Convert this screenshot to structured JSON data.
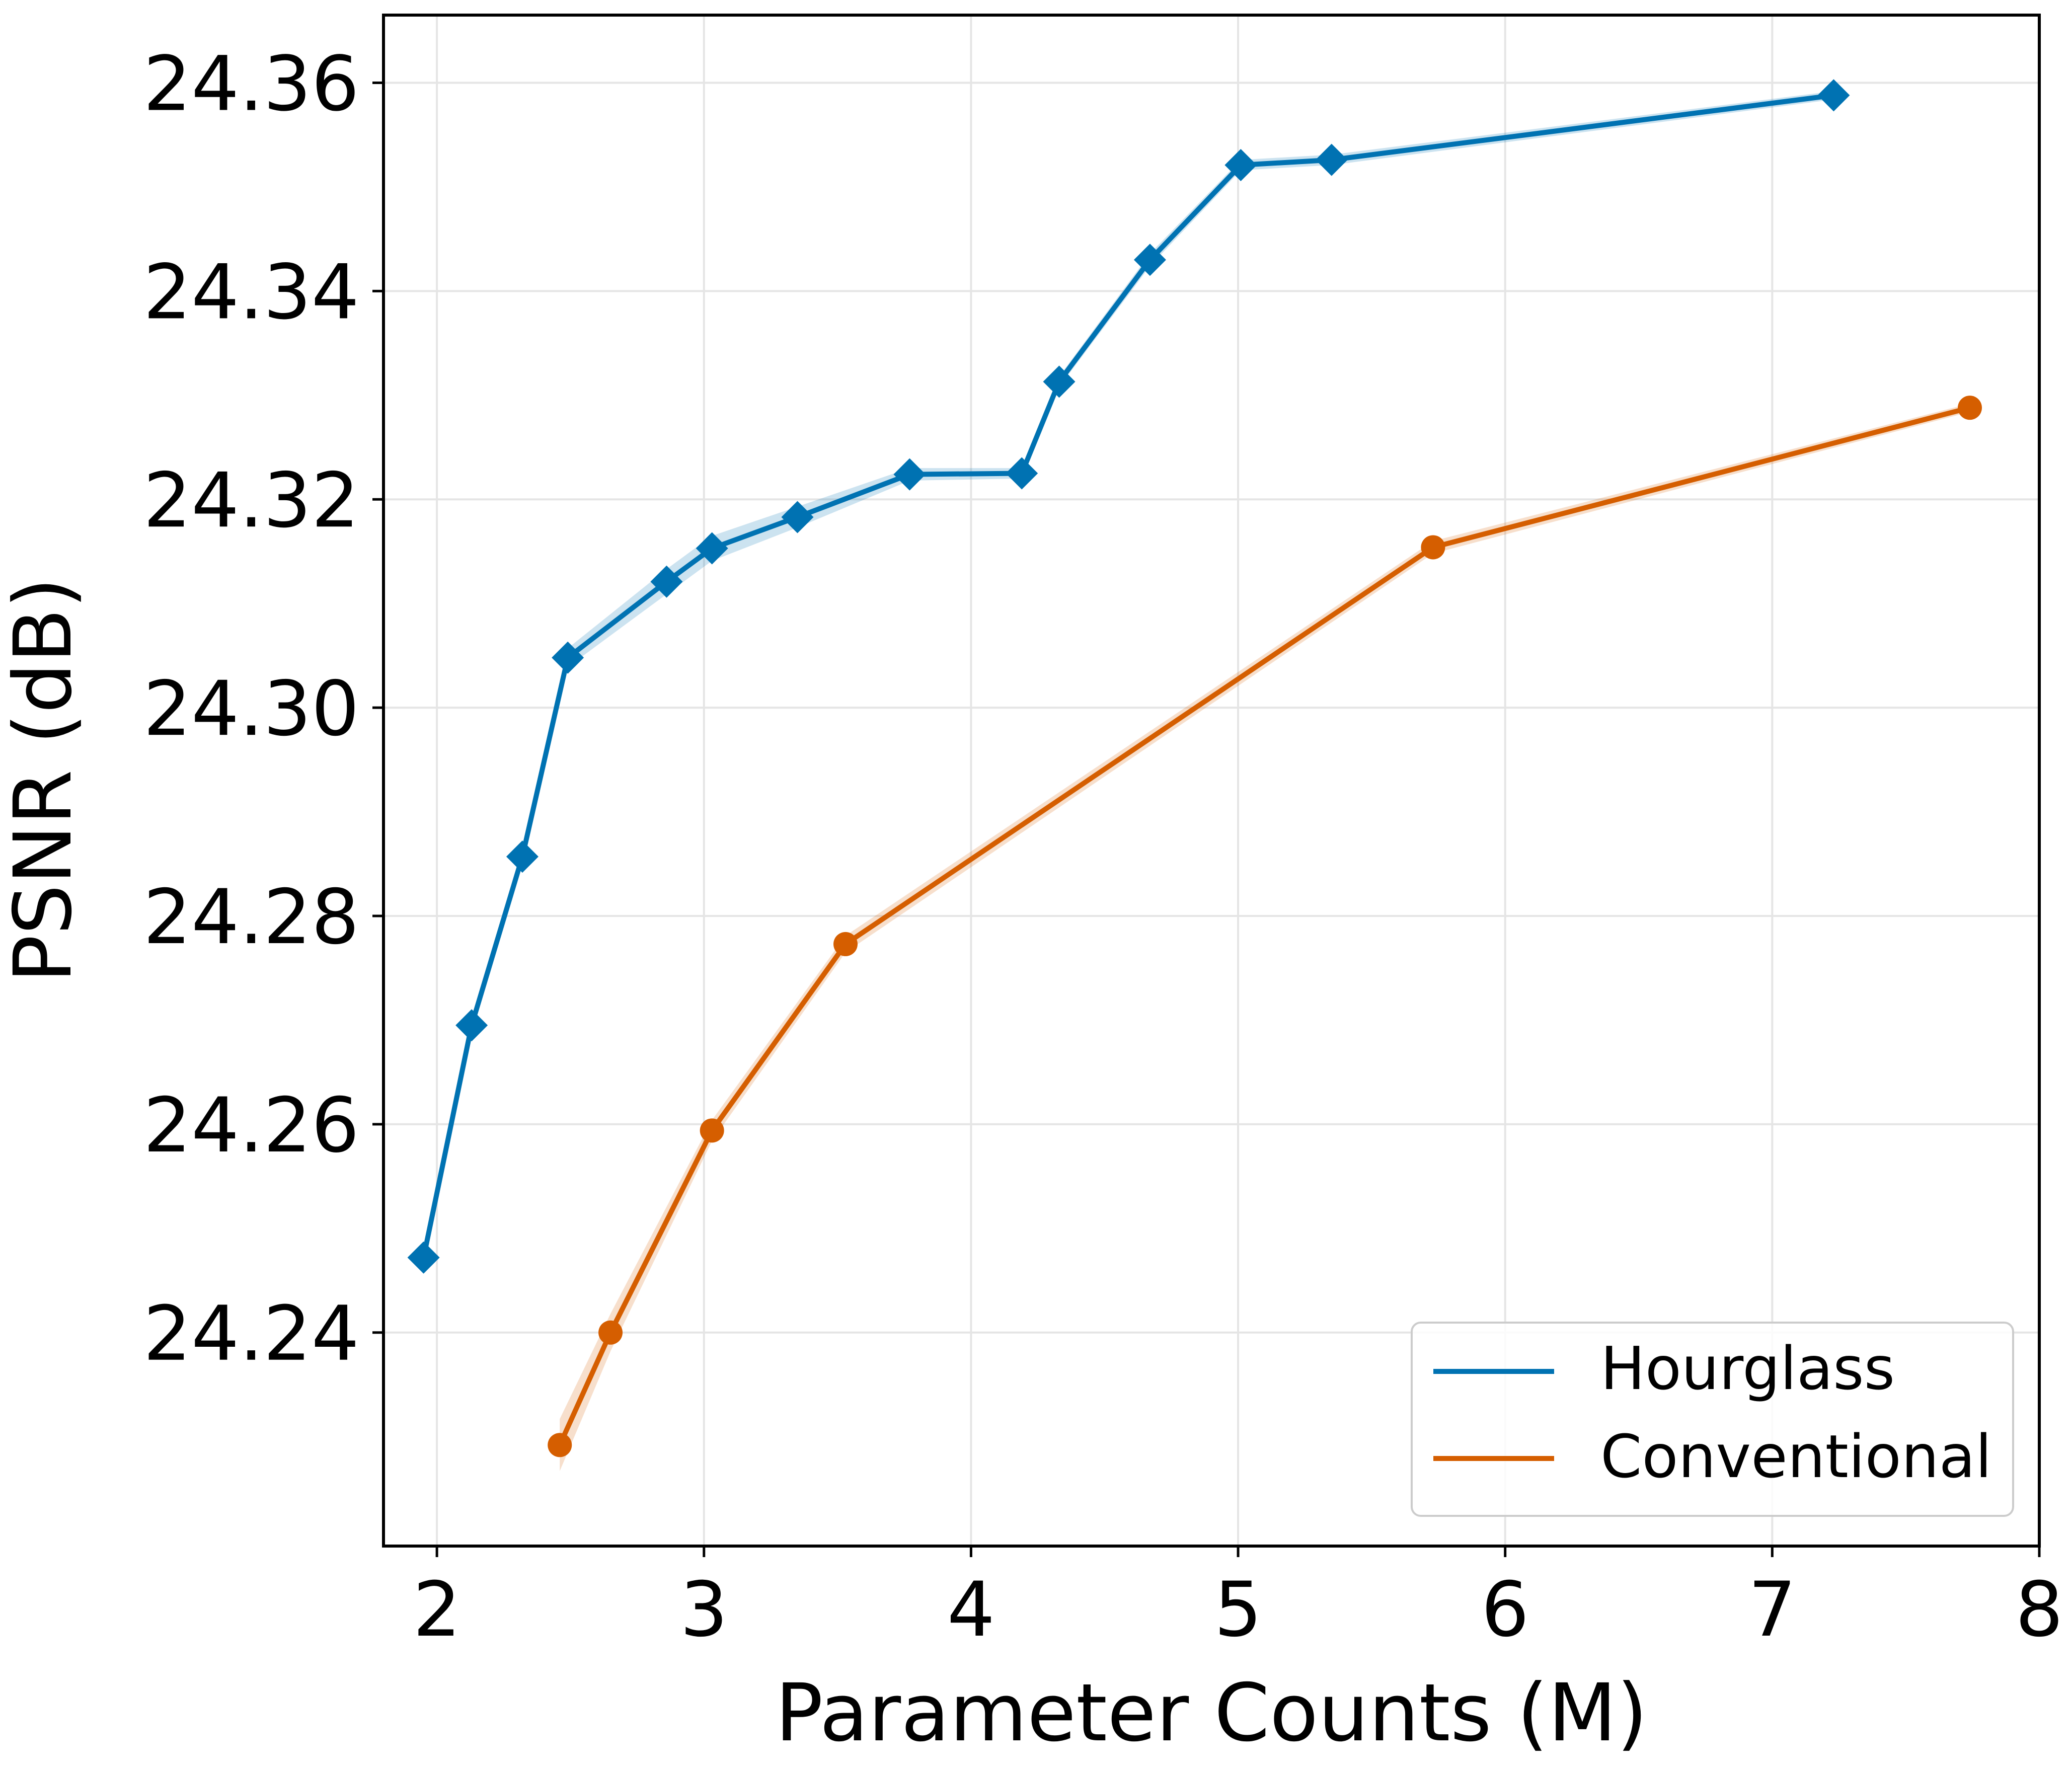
{
  "chart_data": {
    "type": "line",
    "title": "",
    "xlabel": "Parameter Counts (M)",
    "ylabel": "PSNR (dB)",
    "xlim": [
      1.8,
      8.0
    ],
    "ylim": [
      24.2195,
      24.3665
    ],
    "x_ticks": [
      2,
      3,
      4,
      5,
      6,
      7,
      8
    ],
    "x_tick_labels": [
      "2",
      "3",
      "4",
      "5",
      "6",
      "7",
      "8"
    ],
    "y_ticks": [
      24.24,
      24.26,
      24.28,
      24.3,
      24.32,
      24.34,
      24.36
    ],
    "y_tick_labels": [
      "24.24",
      "24.26",
      "24.28",
      "24.30",
      "24.32",
      "24.34",
      "24.36"
    ],
    "grid": true,
    "legend_position": "bottom-right",
    "series": [
      {
        "name": "Hourglass",
        "color": "#0072b2",
        "marker": "diamond",
        "x": [
          1.95,
          2.13,
          2.32,
          2.49,
          2.86,
          3.03,
          3.35,
          3.77,
          4.19,
          4.33,
          4.67,
          5.01,
          5.35,
          7.23
        ],
        "y": [
          24.2472,
          24.2695,
          24.2857,
          24.3048,
          24.3121,
          24.3153,
          24.3183,
          24.3224,
          24.3225,
          24.3313,
          24.343,
          24.3521,
          24.3526,
          24.3588
        ],
        "band": [
          0.0004,
          0.0004,
          0.0004,
          0.0009,
          0.0012,
          0.0012,
          0.001,
          0.0006,
          0.0005,
          0.0005,
          0.0006,
          0.0005,
          0.0005,
          0.0004
        ]
      },
      {
        "name": "Conventional",
        "color": "#d55e00",
        "marker": "circle",
        "x": [
          2.46,
          2.65,
          3.03,
          3.53,
          5.73,
          7.74
        ],
        "y": [
          24.2292,
          24.24,
          24.2594,
          24.2773,
          24.3154,
          24.3288
        ],
        "band": [
          0.0025,
          0.0018,
          0.001,
          0.0008,
          0.0006,
          0.0004
        ]
      }
    ]
  }
}
